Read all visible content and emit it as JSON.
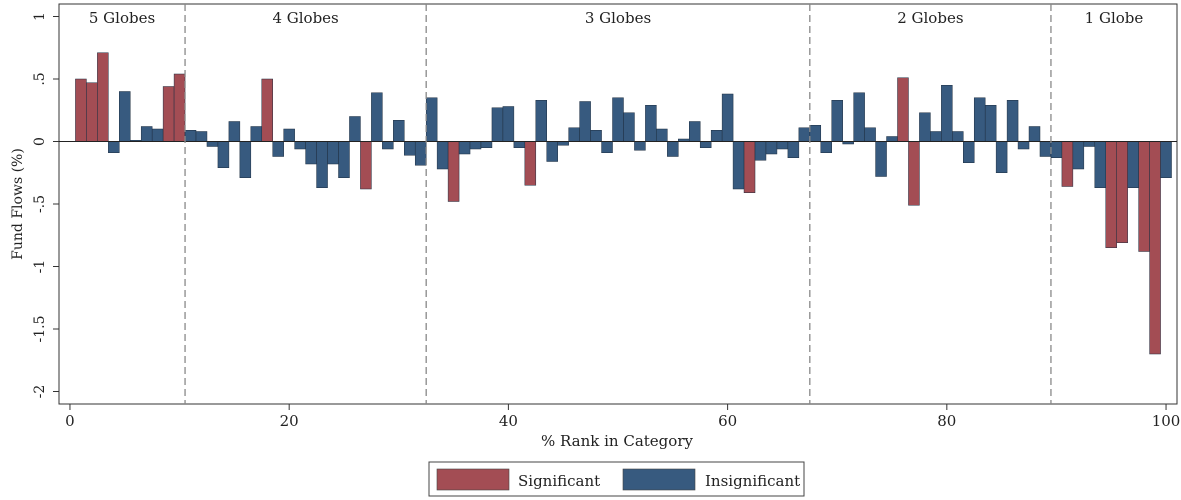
{
  "chart_data": {
    "type": "bar",
    "xlabel": "% Rank in Category",
    "ylabel": "Fund Flows (%)",
    "xlim": [
      -1,
      101
    ],
    "ylim": [
      -2.1,
      1.1
    ],
    "xticks": [
      0,
      20,
      40,
      60,
      80,
      100
    ],
    "yticks": [
      1,
      0.5,
      0,
      -0.5,
      -1,
      -1.5,
      -2
    ],
    "ytick_labels": [
      "1",
      ".5",
      "0",
      "-.5",
      "-1",
      "-1.5",
      "-2"
    ],
    "grid": false,
    "regions": [
      {
        "label": "5 Globes",
        "start": -1,
        "end": 10.5
      },
      {
        "label": "4 Globes",
        "start": 10.5,
        "end": 32.5
      },
      {
        "label": "3 Globes",
        "start": 32.5,
        "end": 67.5
      },
      {
        "label": "2 Globes",
        "start": 67.5,
        "end": 89.5
      },
      {
        "label": "1 Globe",
        "start": 89.5,
        "end": 101
      }
    ],
    "dividers": [
      10.5,
      32.5,
      67.5,
      89.5
    ],
    "legend_position": "bottom-center",
    "series": [
      {
        "name": "Significant",
        "color": "#a34d54"
      },
      {
        "name": "Insignificant",
        "color": "#375a7f"
      }
    ],
    "bars": [
      {
        "x": 1,
        "value": 0.5,
        "significant": true
      },
      {
        "x": 2,
        "value": 0.47,
        "significant": true
      },
      {
        "x": 3,
        "value": 0.71,
        "significant": true
      },
      {
        "x": 4,
        "value": -0.09,
        "significant": false
      },
      {
        "x": 5,
        "value": 0.4,
        "significant": false
      },
      {
        "x": 6,
        "value": 0.01,
        "significant": false
      },
      {
        "x": 7,
        "value": 0.12,
        "significant": false
      },
      {
        "x": 8,
        "value": 0.1,
        "significant": false
      },
      {
        "x": 9,
        "value": 0.44,
        "significant": true
      },
      {
        "x": 10,
        "value": 0.54,
        "significant": true
      },
      {
        "x": 11,
        "value": 0.09,
        "significant": false
      },
      {
        "x": 12,
        "value": 0.08,
        "significant": false
      },
      {
        "x": 13,
        "value": -0.04,
        "significant": false
      },
      {
        "x": 14,
        "value": -0.21,
        "significant": false
      },
      {
        "x": 15,
        "value": 0.16,
        "significant": false
      },
      {
        "x": 16,
        "value": -0.29,
        "significant": false
      },
      {
        "x": 17,
        "value": 0.12,
        "significant": false
      },
      {
        "x": 18,
        "value": 0.5,
        "significant": true
      },
      {
        "x": 19,
        "value": -0.12,
        "significant": false
      },
      {
        "x": 20,
        "value": 0.1,
        "significant": false
      },
      {
        "x": 21,
        "value": -0.06,
        "significant": false
      },
      {
        "x": 22,
        "value": -0.18,
        "significant": false
      },
      {
        "x": 23,
        "value": -0.37,
        "significant": false
      },
      {
        "x": 24,
        "value": -0.18,
        "significant": false
      },
      {
        "x": 25,
        "value": -0.29,
        "significant": false
      },
      {
        "x": 26,
        "value": 0.2,
        "significant": false
      },
      {
        "x": 27,
        "value": -0.38,
        "significant": true
      },
      {
        "x": 28,
        "value": 0.39,
        "significant": false
      },
      {
        "x": 29,
        "value": -0.06,
        "significant": false
      },
      {
        "x": 30,
        "value": 0.17,
        "significant": false
      },
      {
        "x": 31,
        "value": -0.11,
        "significant": false
      },
      {
        "x": 32,
        "value": -0.19,
        "significant": false
      },
      {
        "x": 33,
        "value": 0.35,
        "significant": false
      },
      {
        "x": 34,
        "value": -0.22,
        "significant": false
      },
      {
        "x": 35,
        "value": -0.48,
        "significant": true
      },
      {
        "x": 36,
        "value": -0.1,
        "significant": false
      },
      {
        "x": 37,
        "value": -0.06,
        "significant": false
      },
      {
        "x": 38,
        "value": -0.05,
        "significant": false
      },
      {
        "x": 39,
        "value": 0.27,
        "significant": false
      },
      {
        "x": 40,
        "value": 0.28,
        "significant": false
      },
      {
        "x": 41,
        "value": -0.05,
        "significant": false
      },
      {
        "x": 42,
        "value": -0.35,
        "significant": true
      },
      {
        "x": 43,
        "value": 0.33,
        "significant": false
      },
      {
        "x": 44,
        "value": -0.16,
        "significant": false
      },
      {
        "x": 45,
        "value": -0.03,
        "significant": false
      },
      {
        "x": 46,
        "value": 0.11,
        "significant": false
      },
      {
        "x": 47,
        "value": 0.32,
        "significant": false
      },
      {
        "x": 48,
        "value": 0.09,
        "significant": false
      },
      {
        "x": 49,
        "value": -0.09,
        "significant": false
      },
      {
        "x": 50,
        "value": 0.35,
        "significant": false
      },
      {
        "x": 51,
        "value": 0.23,
        "significant": false
      },
      {
        "x": 52,
        "value": -0.07,
        "significant": false
      },
      {
        "x": 53,
        "value": 0.29,
        "significant": false
      },
      {
        "x": 54,
        "value": 0.1,
        "significant": false
      },
      {
        "x": 55,
        "value": -0.12,
        "significant": false
      },
      {
        "x": 56,
        "value": 0.02,
        "significant": false
      },
      {
        "x": 57,
        "value": 0.16,
        "significant": false
      },
      {
        "x": 58,
        "value": -0.05,
        "significant": false
      },
      {
        "x": 59,
        "value": 0.09,
        "significant": false
      },
      {
        "x": 60,
        "value": 0.38,
        "significant": false
      },
      {
        "x": 61,
        "value": -0.38,
        "significant": false
      },
      {
        "x": 62,
        "value": -0.41,
        "significant": true
      },
      {
        "x": 63,
        "value": -0.15,
        "significant": false
      },
      {
        "x": 64,
        "value": -0.1,
        "significant": false
      },
      {
        "x": 65,
        "value": -0.06,
        "significant": false
      },
      {
        "x": 66,
        "value": -0.13,
        "significant": false
      },
      {
        "x": 67,
        "value": 0.11,
        "significant": false
      },
      {
        "x": 68,
        "value": 0.13,
        "significant": false
      },
      {
        "x": 69,
        "value": -0.09,
        "significant": false
      },
      {
        "x": 70,
        "value": 0.33,
        "significant": false
      },
      {
        "x": 71,
        "value": -0.02,
        "significant": false
      },
      {
        "x": 72,
        "value": 0.39,
        "significant": false
      },
      {
        "x": 73,
        "value": 0.11,
        "significant": false
      },
      {
        "x": 74,
        "value": -0.28,
        "significant": false
      },
      {
        "x": 75,
        "value": 0.04,
        "significant": false
      },
      {
        "x": 76,
        "value": 0.51,
        "significant": true
      },
      {
        "x": 77,
        "value": -0.51,
        "significant": true
      },
      {
        "x": 78,
        "value": 0.23,
        "significant": false
      },
      {
        "x": 79,
        "value": 0.08,
        "significant": false
      },
      {
        "x": 80,
        "value": 0.45,
        "significant": false
      },
      {
        "x": 81,
        "value": 0.08,
        "significant": false
      },
      {
        "x": 82,
        "value": -0.17,
        "significant": false
      },
      {
        "x": 83,
        "value": 0.35,
        "significant": false
      },
      {
        "x": 84,
        "value": 0.29,
        "significant": false
      },
      {
        "x": 85,
        "value": -0.25,
        "significant": false
      },
      {
        "x": 86,
        "value": 0.33,
        "significant": false
      },
      {
        "x": 87,
        "value": -0.06,
        "significant": false
      },
      {
        "x": 88,
        "value": 0.12,
        "significant": false
      },
      {
        "x": 89,
        "value": -0.12,
        "significant": false
      },
      {
        "x": 90,
        "value": -0.13,
        "significant": false
      },
      {
        "x": 91,
        "value": -0.36,
        "significant": true
      },
      {
        "x": 92,
        "value": -0.22,
        "significant": false
      },
      {
        "x": 93,
        "value": -0.04,
        "significant": false
      },
      {
        "x": 94,
        "value": -0.37,
        "significant": false
      },
      {
        "x": 95,
        "value": -0.85,
        "significant": true
      },
      {
        "x": 96,
        "value": -0.81,
        "significant": true
      },
      {
        "x": 97,
        "value": -0.37,
        "significant": false
      },
      {
        "x": 98,
        "value": -0.88,
        "significant": true
      },
      {
        "x": 99,
        "value": -1.7,
        "significant": true
      },
      {
        "x": 100,
        "value": -0.29,
        "significant": false
      }
    ]
  }
}
